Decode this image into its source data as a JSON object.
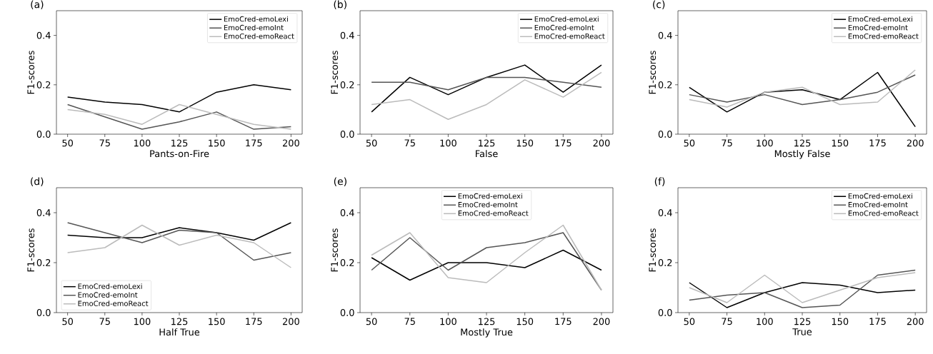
{
  "chart_data": [
    {
      "type": "line",
      "title": "(a)",
      "xlabel": "Pants-on-Fire",
      "ylabel": "F1-scores",
      "x": [
        50,
        75,
        100,
        125,
        150,
        175,
        200
      ],
      "xlim": [
        42.5,
        207.5
      ],
      "ylim": [
        0,
        0.5
      ],
      "xticks": [
        50,
        75,
        100,
        125,
        150,
        175,
        200
      ],
      "yticks": [
        {
          "value": 0,
          "label": "0.0"
        },
        {
          "value": 0.2,
          "label": "0.2"
        },
        {
          "value": 0.4,
          "label": "0.4"
        }
      ],
      "legend": "top right",
      "series": [
        {
          "name": "EmoCred-emoLexi",
          "color": "#000000",
          "values": [
            0.15,
            0.13,
            0.12,
            0.09,
            0.17,
            0.2,
            0.18
          ]
        },
        {
          "name": "EmoCred-emoInt",
          "color": "#555555",
          "values": [
            0.12,
            0.07,
            0.02,
            0.05,
            0.09,
            0.02,
            0.03
          ]
        },
        {
          "name": "EmoCred-emoReact",
          "color": "#bbbbbb",
          "values": [
            0.1,
            0.08,
            0.04,
            0.12,
            0.08,
            0.04,
            0.02
          ]
        }
      ]
    },
    {
      "type": "line",
      "title": "(b)",
      "xlabel": "False",
      "ylabel": "F1-scores",
      "x": [
        50,
        75,
        100,
        125,
        150,
        175,
        200
      ],
      "xlim": [
        42.5,
        207.5
      ],
      "ylim": [
        0,
        0.5
      ],
      "xticks": [
        50,
        75,
        100,
        125,
        150,
        175,
        200
      ],
      "yticks": [
        {
          "value": 0,
          "label": "0.0"
        },
        {
          "value": 0.2,
          "label": "0.2"
        },
        {
          "value": 0.4,
          "label": "0.4"
        }
      ],
      "legend": "top right",
      "series": [
        {
          "name": "EmoCred-emoLexi",
          "color": "#000000",
          "values": [
            0.09,
            0.23,
            0.16,
            0.23,
            0.28,
            0.17,
            0.28
          ]
        },
        {
          "name": "EmoCred-emoInt",
          "color": "#555555",
          "values": [
            0.21,
            0.21,
            0.18,
            0.23,
            0.23,
            0.21,
            0.19
          ]
        },
        {
          "name": "EmoCred-emoReact",
          "color": "#bbbbbb",
          "values": [
            0.12,
            0.14,
            0.06,
            0.12,
            0.22,
            0.15,
            0.25
          ]
        }
      ]
    },
    {
      "type": "line",
      "title": "(c)",
      "xlabel": "Mostly False",
      "ylabel": "F1-scores",
      "x": [
        50,
        75,
        100,
        125,
        150,
        175,
        200
      ],
      "xlim": [
        42.5,
        207.5
      ],
      "ylim": [
        0,
        0.5
      ],
      "xticks": [
        50,
        75,
        100,
        125,
        150,
        175,
        200
      ],
      "yticks": [
        {
          "value": 0,
          "label": "0.0"
        },
        {
          "value": 0.2,
          "label": "0.2"
        },
        {
          "value": 0.4,
          "label": "0.4"
        }
      ],
      "legend": "top right",
      "series": [
        {
          "name": "EmoCred-emoLexi",
          "color": "#000000",
          "values": [
            0.19,
            0.09,
            0.17,
            0.18,
            0.14,
            0.25,
            0.03
          ]
        },
        {
          "name": "EmoCred-emoInt",
          "color": "#555555",
          "values": [
            0.16,
            0.13,
            0.16,
            0.12,
            0.14,
            0.17,
            0.24
          ]
        },
        {
          "name": "EmoCred-emoReact",
          "color": "#bbbbbb",
          "values": [
            0.14,
            0.11,
            0.17,
            0.19,
            0.12,
            0.13,
            0.26
          ]
        }
      ]
    },
    {
      "type": "line",
      "title": "(d)",
      "xlabel": "Half True",
      "ylabel": "F1-scores",
      "x": [
        50,
        75,
        100,
        125,
        150,
        175,
        200
      ],
      "xlim": [
        42.5,
        207.5
      ],
      "ylim": [
        0,
        0.5
      ],
      "xticks": [
        50,
        75,
        100,
        125,
        150,
        175,
        200
      ],
      "yticks": [
        {
          "value": 0,
          "label": "0.0"
        },
        {
          "value": 0.2,
          "label": "0.2"
        },
        {
          "value": 0.4,
          "label": "0.4"
        }
      ],
      "legend": "bottom left",
      "series": [
        {
          "name": "EmoCred-emoLexi",
          "color": "#000000",
          "values": [
            0.31,
            0.3,
            0.3,
            0.34,
            0.32,
            0.29,
            0.36
          ]
        },
        {
          "name": "EmoCred-emoInt",
          "color": "#555555",
          "values": [
            0.36,
            0.32,
            0.28,
            0.33,
            0.32,
            0.21,
            0.24
          ]
        },
        {
          "name": "EmoCred-emoReact",
          "color": "#bbbbbb",
          "values": [
            0.24,
            0.26,
            0.35,
            0.27,
            0.31,
            0.28,
            0.18
          ]
        }
      ]
    },
    {
      "type": "line",
      "title": "(e)",
      "xlabel": "Mostly True",
      "ylabel": "F1-scores",
      "x": [
        50,
        75,
        100,
        125,
        150,
        175,
        200
      ],
      "xlim": [
        42.5,
        207.5
      ],
      "ylim": [
        0,
        0.5
      ],
      "xticks": [
        50,
        75,
        100,
        125,
        150,
        175,
        200
      ],
      "yticks": [
        {
          "value": 0,
          "label": "0.0"
        },
        {
          "value": 0.2,
          "label": "0.2"
        },
        {
          "value": 0.4,
          "label": "0.4"
        }
      ],
      "legend": "top",
      "series": [
        {
          "name": "EmoCred-emoLexi",
          "color": "#000000",
          "values": [
            0.22,
            0.13,
            0.2,
            0.2,
            0.18,
            0.25,
            0.17
          ]
        },
        {
          "name": "EmoCred-emoInt",
          "color": "#555555",
          "values": [
            0.17,
            0.3,
            0.17,
            0.26,
            0.28,
            0.32,
            0.09
          ]
        },
        {
          "name": "EmoCred-emoReact",
          "color": "#bbbbbb",
          "values": [
            0.23,
            0.32,
            0.14,
            0.12,
            0.24,
            0.35,
            0.09
          ]
        }
      ]
    },
    {
      "type": "line",
      "title": "(f)",
      "xlabel": "True",
      "ylabel": "F1-scores",
      "x": [
        50,
        75,
        100,
        125,
        150,
        175,
        200
      ],
      "xlim": [
        42.5,
        207.5
      ],
      "ylim": [
        0,
        0.5
      ],
      "xticks": [
        50,
        75,
        100,
        125,
        150,
        175,
        200
      ],
      "yticks": [
        {
          "value": 0,
          "label": "0.0"
        },
        {
          "value": 0.2,
          "label": "0.2"
        },
        {
          "value": 0.4,
          "label": "0.4"
        }
      ],
      "legend": "top right",
      "series": [
        {
          "name": "EmoCred-emoLexi",
          "color": "#000000",
          "values": [
            0.12,
            0.02,
            0.08,
            0.12,
            0.11,
            0.08,
            0.09
          ]
        },
        {
          "name": "EmoCred-emoInt",
          "color": "#555555",
          "values": [
            0.05,
            0.07,
            0.08,
            0.02,
            0.03,
            0.15,
            0.17
          ]
        },
        {
          "name": "EmoCred-emoReact",
          "color": "#bbbbbb",
          "values": [
            0.1,
            0.04,
            0.15,
            0.04,
            0.09,
            0.14,
            0.16
          ]
        }
      ]
    }
  ]
}
